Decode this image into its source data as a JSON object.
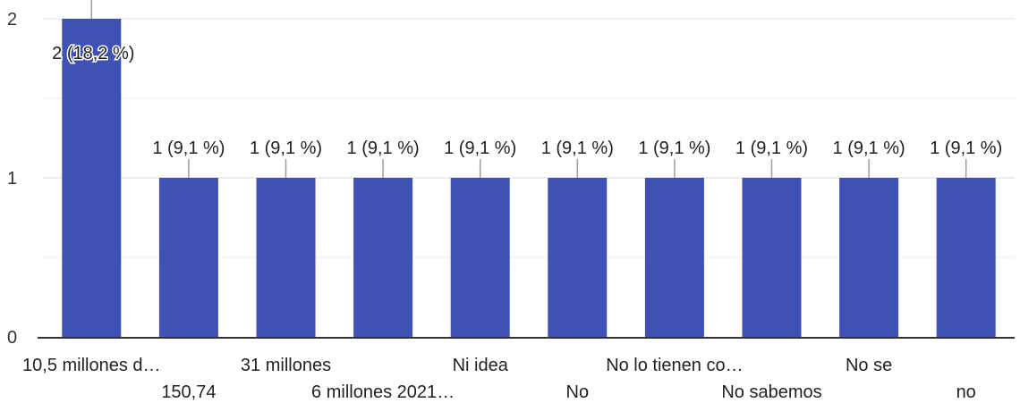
{
  "chart_data": {
    "type": "bar",
    "categories": [
      "10,5 millones d…",
      "150,74",
      "31 millones",
      "6 millones 2021…",
      "Ni idea",
      "No",
      "No lo tienen co…",
      "No sabemos",
      "No se",
      "no"
    ],
    "values": [
      2,
      1,
      1,
      1,
      1,
      1,
      1,
      1,
      1,
      1
    ],
    "data_labels": [
      "2 (18,2 %)",
      "1 (9,1 %)",
      "1 (9,1 %)",
      "1 (9,1 %)",
      "1 (9,1 %)",
      "1 (9,1 %)",
      "1 (9,1 %)",
      "1 (9,1 %)",
      "1 (9,1 %)",
      "1 (9,1 %)"
    ],
    "y_ticks": [
      "0",
      "1",
      "2"
    ],
    "ylim": [
      0,
      2
    ],
    "grid": true,
    "legend": "none",
    "bar_color": "#3f51b5",
    "grid_color": "#eeeeee",
    "axis_color": "#333333"
  }
}
